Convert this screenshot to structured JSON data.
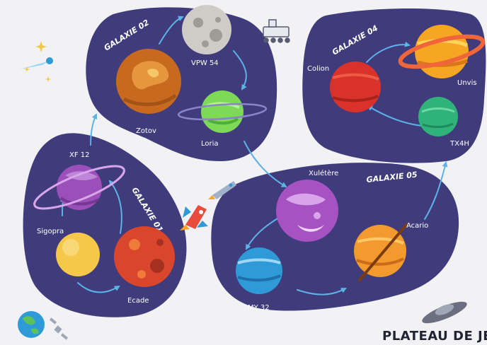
{
  "title": "PLATEAU DE JEU",
  "colors": {
    "background": "#f2f2f4",
    "galaxy": "#403c7c",
    "arrow": "#5cb3e8",
    "label": "#ffffff"
  },
  "galaxies": [
    {
      "id": "g1",
      "name": "GALAXIE 01",
      "planets": [
        "XF 12",
        "Sigopra",
        "Ecade"
      ]
    },
    {
      "id": "g2",
      "name": "GALAXIE 02",
      "planets": [
        "Zotov",
        "VPW 54",
        "Loria"
      ]
    },
    {
      "id": "g4",
      "name": "GALAXIE 04",
      "planets": [
        "Colion",
        "Unvis",
        "TX4H"
      ]
    },
    {
      "id": "g5",
      "name": "GALAXIE 05",
      "planets": [
        "Xulétère",
        "Acario",
        "MY 32"
      ]
    }
  ],
  "planets": {
    "xf12": {
      "label": "XF 12",
      "color": "#9b4fb8",
      "icon": "ringed-planet-icon"
    },
    "sigopra": {
      "label": "Sigopra",
      "color": "#f6c84a",
      "icon": "planet-icon"
    },
    "ecade": {
      "label": "Ecade",
      "color": "#d9462c",
      "icon": "planet-icon"
    },
    "zotov": {
      "label": "Zotov",
      "color": "#c76a1f",
      "icon": "planet-icon"
    },
    "vpw54": {
      "label": "VPW 54",
      "color": "#cfccc8",
      "icon": "moon-icon"
    },
    "loria": {
      "label": "Loria",
      "color": "#7ed957",
      "icon": "ringed-planet-icon"
    },
    "colion": {
      "label": "Colion",
      "color": "#d8322a",
      "icon": "planet-icon"
    },
    "unvis": {
      "label": "Unvis",
      "color": "#f6a623",
      "icon": "ringed-planet-icon"
    },
    "tx4h": {
      "label": "TX4H",
      "color": "#2fb37a",
      "icon": "planet-icon"
    },
    "xuletere": {
      "label": "Xulétère",
      "color": "#a652c2",
      "icon": "planet-icon"
    },
    "acario": {
      "label": "Acario",
      "color": "#f29a2e",
      "icon": "ringed-planet-icon"
    },
    "my32": {
      "label": "MY 32",
      "color": "#2f9ad8",
      "icon": "planet-icon"
    }
  },
  "decorations": [
    "rocket-icon",
    "comet-icon",
    "rover-icon",
    "earth-icon",
    "satellite-icon",
    "ufo-icon",
    "sparkle-icon"
  ]
}
